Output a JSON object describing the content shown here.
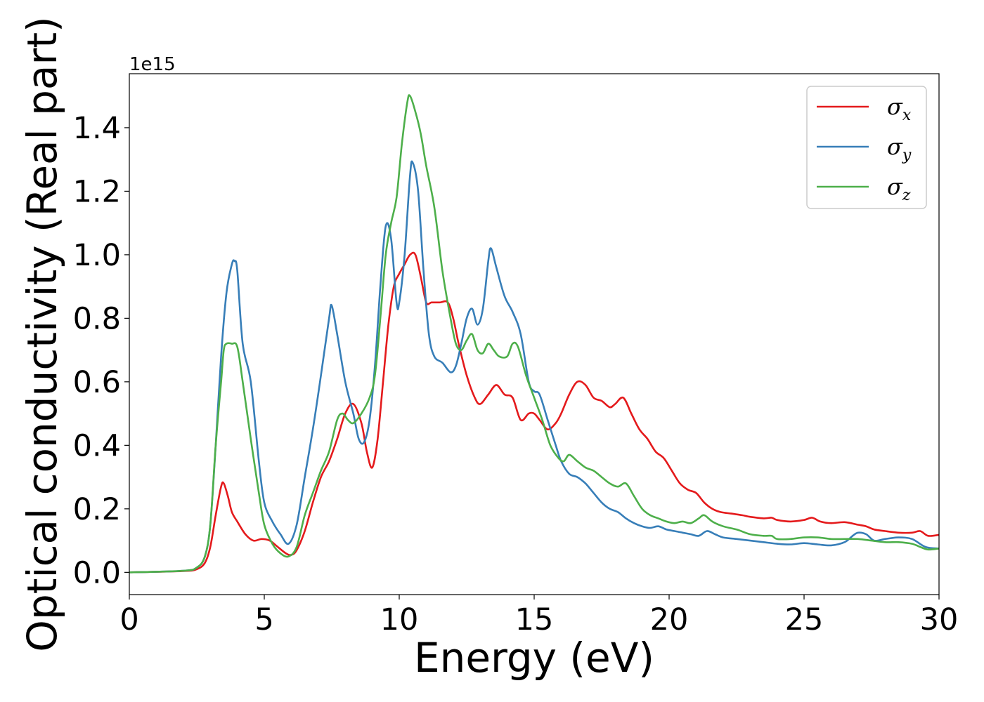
{
  "chart_data": {
    "type": "line",
    "xlabel": "Energy (eV)",
    "ylabel": "Optical conductivity (Real part)",
    "y_offset_text": "1e15",
    "xlim": [
      0,
      30
    ],
    "ylim": [
      -0.07,
      1.57
    ],
    "x_ticks": [
      0,
      5,
      10,
      15,
      20,
      25,
      30
    ],
    "x_tick_labels": [
      "0",
      "5",
      "10",
      "15",
      "20",
      "25",
      "30"
    ],
    "y_ticks": [
      0.0,
      0.2,
      0.4,
      0.6,
      0.8,
      1.0,
      1.2,
      1.4
    ],
    "y_tick_labels": [
      "0.0",
      "0.2",
      "0.4",
      "0.6",
      "0.8",
      "1.0",
      "1.2",
      "1.4"
    ],
    "grid": false,
    "legend_position": "top-right",
    "series": [
      {
        "name": "σ_x",
        "label_base": "σ",
        "label_sub": "x",
        "color": "#e41a1c",
        "x": [
          0,
          2.0,
          2.5,
          2.8,
          3.0,
          3.2,
          3.4,
          3.5,
          3.65,
          3.8,
          4.0,
          4.3,
          4.6,
          4.9,
          5.2,
          5.5,
          5.8,
          6.0,
          6.2,
          6.5,
          6.8,
          7.1,
          7.4,
          7.7,
          8.0,
          8.3,
          8.6,
          8.8,
          9.0,
          9.2,
          9.4,
          9.6,
          9.8,
          10.0,
          10.2,
          10.4,
          10.6,
          10.8,
          11.0,
          11.2,
          11.5,
          11.8,
          12.0,
          12.2,
          12.5,
          12.8,
          13.0,
          13.3,
          13.6,
          13.9,
          14.2,
          14.5,
          14.8,
          15.0,
          15.2,
          15.5,
          15.8,
          16.0,
          16.3,
          16.6,
          16.9,
          17.2,
          17.5,
          17.8,
          18.0,
          18.3,
          18.6,
          18.9,
          19.2,
          19.5,
          19.8,
          20.1,
          20.4,
          20.7,
          21.0,
          21.3,
          21.6,
          21.9,
          22.3,
          22.7,
          23.0,
          23.5,
          23.8,
          24.0,
          24.5,
          25.0,
          25.3,
          25.6,
          26.0,
          26.5,
          27.0,
          27.3,
          27.6,
          28.0,
          28.5,
          29.0,
          29.3,
          29.6,
          30.0
        ],
        "y": [
          0.0,
          0.004,
          0.01,
          0.03,
          0.08,
          0.18,
          0.27,
          0.28,
          0.24,
          0.19,
          0.16,
          0.12,
          0.1,
          0.105,
          0.1,
          0.08,
          0.06,
          0.055,
          0.07,
          0.13,
          0.22,
          0.3,
          0.35,
          0.42,
          0.5,
          0.53,
          0.47,
          0.38,
          0.33,
          0.42,
          0.6,
          0.78,
          0.9,
          0.94,
          0.97,
          1.0,
          1.0,
          0.93,
          0.85,
          0.85,
          0.85,
          0.85,
          0.8,
          0.72,
          0.62,
          0.55,
          0.53,
          0.56,
          0.59,
          0.56,
          0.55,
          0.48,
          0.5,
          0.5,
          0.48,
          0.45,
          0.47,
          0.5,
          0.56,
          0.6,
          0.59,
          0.55,
          0.54,
          0.52,
          0.53,
          0.55,
          0.5,
          0.45,
          0.42,
          0.38,
          0.36,
          0.32,
          0.28,
          0.26,
          0.25,
          0.22,
          0.2,
          0.19,
          0.185,
          0.18,
          0.175,
          0.17,
          0.172,
          0.165,
          0.16,
          0.165,
          0.172,
          0.16,
          0.155,
          0.158,
          0.15,
          0.145,
          0.135,
          0.13,
          0.125,
          0.125,
          0.13,
          0.115,
          0.118
        ]
      },
      {
        "name": "σ_y",
        "label_base": "σ",
        "label_sub": "y",
        "color": "#377eb8",
        "x": [
          0,
          2.0,
          2.5,
          2.8,
          3.0,
          3.2,
          3.4,
          3.6,
          3.8,
          3.9,
          4.0,
          4.2,
          4.5,
          4.8,
          5.0,
          5.3,
          5.6,
          5.9,
          6.2,
          6.5,
          6.8,
          7.1,
          7.4,
          7.5,
          7.7,
          8.0,
          8.3,
          8.5,
          8.7,
          8.9,
          9.1,
          9.3,
          9.5,
          9.7,
          9.9,
          10.0,
          10.2,
          10.4,
          10.5,
          10.7,
          10.9,
          11.1,
          11.3,
          11.6,
          11.9,
          12.1,
          12.3,
          12.5,
          12.7,
          12.9,
          13.1,
          13.3,
          13.4,
          13.6,
          13.9,
          14.2,
          14.5,
          14.8,
          15.0,
          15.2,
          15.5,
          15.8,
          16.0,
          16.3,
          16.6,
          16.9,
          17.2,
          17.5,
          17.8,
          18.1,
          18.4,
          18.7,
          19.0,
          19.3,
          19.6,
          19.9,
          20.2,
          20.5,
          20.8,
          21.1,
          21.4,
          21.7,
          22.0,
          22.5,
          23.0,
          23.5,
          24.0,
          24.5,
          25.0,
          25.5,
          26.0,
          26.5,
          26.8,
          27.0,
          27.3,
          27.6,
          28.0,
          28.5,
          29.0,
          29.5,
          30.0
        ],
        "y": [
          0.0,
          0.005,
          0.015,
          0.05,
          0.15,
          0.4,
          0.68,
          0.88,
          0.97,
          0.98,
          0.95,
          0.72,
          0.6,
          0.35,
          0.22,
          0.16,
          0.12,
          0.09,
          0.15,
          0.3,
          0.45,
          0.62,
          0.8,
          0.84,
          0.75,
          0.6,
          0.5,
          0.42,
          0.41,
          0.48,
          0.65,
          0.9,
          1.09,
          1.05,
          0.85,
          0.85,
          1.0,
          1.25,
          1.29,
          1.2,
          0.95,
          0.75,
          0.68,
          0.66,
          0.63,
          0.65,
          0.72,
          0.8,
          0.83,
          0.78,
          0.83,
          0.98,
          1.02,
          0.96,
          0.87,
          0.82,
          0.75,
          0.6,
          0.57,
          0.56,
          0.48,
          0.4,
          0.35,
          0.31,
          0.3,
          0.28,
          0.25,
          0.22,
          0.2,
          0.19,
          0.17,
          0.155,
          0.145,
          0.14,
          0.145,
          0.135,
          0.13,
          0.125,
          0.12,
          0.115,
          0.13,
          0.12,
          0.11,
          0.105,
          0.1,
          0.095,
          0.09,
          0.088,
          0.092,
          0.088,
          0.085,
          0.095,
          0.115,
          0.125,
          0.12,
          0.1,
          0.105,
          0.11,
          0.105,
          0.08,
          0.075
        ]
      },
      {
        "name": "σ_z",
        "label_base": "σ",
        "label_sub": "z",
        "color": "#4daf4a",
        "x": [
          0,
          2.0,
          2.5,
          2.8,
          3.0,
          3.2,
          3.4,
          3.5,
          3.6,
          3.8,
          4.0,
          4.2,
          4.5,
          4.8,
          5.0,
          5.3,
          5.6,
          5.9,
          6.2,
          6.5,
          6.8,
          7.1,
          7.4,
          7.7,
          7.9,
          8.1,
          8.3,
          8.6,
          8.9,
          9.1,
          9.3,
          9.5,
          9.7,
          9.9,
          10.1,
          10.3,
          10.4,
          10.6,
          10.8,
          11.0,
          11.3,
          11.6,
          11.9,
          12.1,
          12.3,
          12.5,
          12.7,
          12.9,
          13.1,
          13.3,
          13.5,
          13.7,
          14.0,
          14.2,
          14.4,
          14.7,
          15.0,
          15.3,
          15.6,
          15.9,
          16.1,
          16.3,
          16.6,
          16.9,
          17.2,
          17.5,
          17.8,
          18.1,
          18.4,
          18.7,
          19.0,
          19.3,
          19.6,
          19.9,
          20.2,
          20.5,
          20.8,
          21.1,
          21.3,
          21.6,
          22.0,
          22.5,
          23.0,
          23.5,
          23.8,
          24.0,
          24.5,
          25.0,
          25.5,
          26.0,
          26.5,
          27.0,
          27.5,
          28.0,
          28.5,
          29.0,
          29.3,
          29.6,
          30.0
        ],
        "y": [
          0.0,
          0.005,
          0.015,
          0.05,
          0.15,
          0.4,
          0.6,
          0.7,
          0.72,
          0.72,
          0.71,
          0.6,
          0.42,
          0.25,
          0.15,
          0.09,
          0.06,
          0.05,
          0.08,
          0.18,
          0.25,
          0.32,
          0.38,
          0.48,
          0.5,
          0.48,
          0.47,
          0.5,
          0.55,
          0.62,
          0.8,
          1.0,
          1.1,
          1.18,
          1.35,
          1.48,
          1.5,
          1.45,
          1.38,
          1.28,
          1.15,
          0.95,
          0.8,
          0.72,
          0.7,
          0.73,
          0.75,
          0.7,
          0.69,
          0.72,
          0.7,
          0.68,
          0.68,
          0.72,
          0.71,
          0.62,
          0.55,
          0.48,
          0.4,
          0.36,
          0.35,
          0.37,
          0.35,
          0.33,
          0.32,
          0.3,
          0.28,
          0.27,
          0.28,
          0.24,
          0.2,
          0.18,
          0.17,
          0.16,
          0.155,
          0.16,
          0.155,
          0.17,
          0.18,
          0.16,
          0.145,
          0.135,
          0.12,
          0.115,
          0.115,
          0.105,
          0.105,
          0.11,
          0.11,
          0.105,
          0.105,
          0.105,
          0.1,
          0.095,
          0.095,
          0.09,
          0.08,
          0.072,
          0.075
        ]
      }
    ]
  }
}
